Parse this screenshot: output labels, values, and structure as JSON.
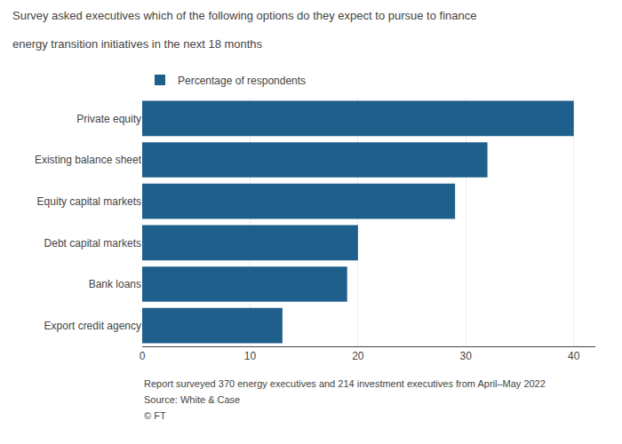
{
  "chart_data": {
    "type": "bar",
    "orientation": "horizontal",
    "title": "Survey asked executives which of the following options do they expect to pursue to finance",
    "subtitle": "energy transition initiatives in the next 18 months",
    "categories": [
      "Export credit agency",
      "Bank loans",
      "Debt capital markets",
      "Equity capital markets",
      "Existing balance sheet",
      "Private equity"
    ],
    "series": [
      {
        "name": "Percentage of respondents",
        "color": "#1f5f8b",
        "values": [
          13,
          19,
          20,
          29,
          32,
          40
        ]
      }
    ],
    "xlim": [
      0,
      42
    ],
    "xticks": [
      0,
      10,
      20,
      30,
      40
    ],
    "grid": true,
    "legend": "upper left",
    "annotations": [
      "Report surveyed 370 energy executives and 214 investment executives from April–May 2022",
      "Source: White & Case",
      "© FT"
    ]
  }
}
